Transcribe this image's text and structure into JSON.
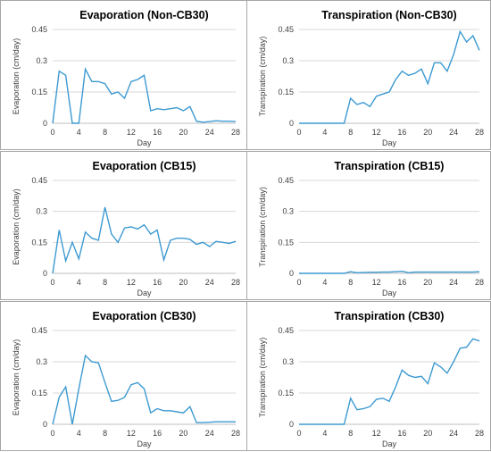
{
  "chart_data": [
    {
      "type": "line",
      "title": "Evaporation (Non-CB30)",
      "xlabel": "Day",
      "ylabel": "Evaporation (cm/day)",
      "xlim": [
        0,
        28
      ],
      "ylim": [
        0,
        0.45
      ],
      "xticks": [
        0,
        4,
        8,
        12,
        16,
        20,
        24,
        28
      ],
      "yticks": [
        "0",
        "0.15",
        "0.3",
        "0.45"
      ],
      "grid": true,
      "color": "#3d9ad1",
      "x": [
        0,
        1,
        2,
        3,
        4,
        5,
        6,
        7,
        8,
        9,
        10,
        11,
        12,
        13,
        14,
        15,
        16,
        17,
        18,
        19,
        20,
        21,
        22,
        23,
        24,
        25,
        26,
        27,
        28
      ],
      "values": [
        0.0,
        0.25,
        0.23,
        0.0,
        0.0,
        0.26,
        0.2,
        0.2,
        0.19,
        0.14,
        0.15,
        0.12,
        0.2,
        0.21,
        0.23,
        0.06,
        0.07,
        0.065,
        0.07,
        0.075,
        0.06,
        0.08,
        0.01,
        0.005,
        0.008,
        0.012,
        0.01,
        0.01,
        0.008
      ]
    },
    {
      "type": "line",
      "title": "Transpiration (Non-CB30)",
      "xlabel": "Day",
      "ylabel": "Transpiration (cm/day)",
      "xlim": [
        0,
        28
      ],
      "ylim": [
        0,
        0.45
      ],
      "xticks": [
        0,
        4,
        8,
        12,
        16,
        20,
        24,
        28
      ],
      "yticks": [
        "0",
        "0.15",
        "0.3",
        "0.45"
      ],
      "grid": true,
      "color": "#3d9ad1",
      "x": [
        0,
        1,
        2,
        3,
        4,
        5,
        6,
        7,
        8,
        9,
        10,
        11,
        12,
        13,
        14,
        15,
        16,
        17,
        18,
        19,
        20,
        21,
        22,
        23,
        24,
        25,
        26,
        27,
        28
      ],
      "values": [
        0,
        0,
        0,
        0,
        0,
        0,
        0,
        0,
        0.12,
        0.09,
        0.1,
        0.08,
        0.13,
        0.14,
        0.15,
        0.21,
        0.25,
        0.23,
        0.24,
        0.26,
        0.19,
        0.29,
        0.29,
        0.25,
        0.33,
        0.44,
        0.39,
        0.42,
        0.35
      ]
    },
    {
      "type": "line",
      "title": "Evaporation (CB15)",
      "xlabel": "Day",
      "ylabel": "Evaporation (cm/day)",
      "xlim": [
        0,
        28
      ],
      "ylim": [
        0,
        0.45
      ],
      "xticks": [
        0,
        4,
        8,
        12,
        16,
        20,
        24,
        28
      ],
      "yticks": [
        "0",
        "0.15",
        "0.3",
        "0.45"
      ],
      "grid": true,
      "color": "#3d9ad1",
      "x": [
        0,
        1,
        2,
        3,
        4,
        5,
        6,
        7,
        8,
        9,
        10,
        11,
        12,
        13,
        14,
        15,
        16,
        17,
        18,
        19,
        20,
        21,
        22,
        23,
        24,
        25,
        26,
        27,
        28
      ],
      "values": [
        0.0,
        0.21,
        0.06,
        0.15,
        0.07,
        0.2,
        0.17,
        0.16,
        0.32,
        0.19,
        0.15,
        0.22,
        0.225,
        0.215,
        0.235,
        0.19,
        0.21,
        0.065,
        0.16,
        0.17,
        0.17,
        0.165,
        0.14,
        0.15,
        0.13,
        0.155,
        0.15,
        0.145,
        0.155
      ]
    },
    {
      "type": "line",
      "title": "Transpiration (CB15)",
      "xlabel": "Day",
      "ylabel": "Transpiration (cm/day)",
      "xlim": [
        0,
        28
      ],
      "ylim": [
        0,
        0.45
      ],
      "xticks": [
        0,
        4,
        8,
        12,
        16,
        20,
        24,
        28
      ],
      "yticks": [
        "0",
        "0.15",
        "0.3",
        "0.45"
      ],
      "grid": true,
      "color": "#3d9ad1",
      "x": [
        0,
        1,
        2,
        3,
        4,
        5,
        6,
        7,
        8,
        9,
        10,
        11,
        12,
        13,
        14,
        15,
        16,
        17,
        18,
        19,
        20,
        21,
        22,
        23,
        24,
        25,
        26,
        27,
        28
      ],
      "values": [
        0,
        0,
        0,
        0,
        0,
        0,
        0,
        0,
        0.008,
        0.003,
        0.004,
        0.005,
        0.005,
        0.006,
        0.006,
        0.008,
        0.01,
        0.003,
        0.006,
        0.006,
        0.006,
        0.006,
        0.006,
        0.006,
        0.006,
        0.006,
        0.006,
        0.006,
        0.008
      ]
    },
    {
      "type": "line",
      "title": "Evaporation (CB30)",
      "xlabel": "Day",
      "ylabel": "Evaporation (cm/day)",
      "xlim": [
        0,
        28
      ],
      "ylim": [
        0,
        0.45
      ],
      "xticks": [
        0,
        4,
        8,
        12,
        16,
        20,
        24,
        28
      ],
      "yticks": [
        "0",
        "0.15",
        "0.3",
        "0.45"
      ],
      "grid": true,
      "color": "#3d9ad1",
      "x": [
        0,
        1,
        2,
        3,
        4,
        5,
        6,
        7,
        8,
        9,
        10,
        11,
        12,
        13,
        14,
        15,
        16,
        17,
        18,
        19,
        20,
        21,
        22,
        23,
        24,
        25,
        26,
        27,
        28
      ],
      "values": [
        0.0,
        0.13,
        0.18,
        0.0,
        0.17,
        0.33,
        0.3,
        0.295,
        0.2,
        0.11,
        0.115,
        0.13,
        0.19,
        0.2,
        0.17,
        0.055,
        0.075,
        0.065,
        0.065,
        0.06,
        0.055,
        0.085,
        0.008,
        0.008,
        0.01,
        0.012,
        0.012,
        0.012,
        0.012
      ]
    },
    {
      "type": "line",
      "title": "Transpiration (CB30)",
      "xlabel": "Day",
      "ylabel": "Transpiration (cm/day)",
      "xlim": [
        0,
        28
      ],
      "ylim": [
        0,
        0.45
      ],
      "xticks": [
        0,
        4,
        8,
        12,
        16,
        20,
        24,
        28
      ],
      "yticks": [
        "0",
        "0.15",
        "0.3",
        "0.45"
      ],
      "grid": true,
      "color": "#3d9ad1",
      "x": [
        0,
        1,
        2,
        3,
        4,
        5,
        6,
        7,
        8,
        9,
        10,
        11,
        12,
        13,
        14,
        15,
        16,
        17,
        18,
        19,
        20,
        21,
        22,
        23,
        24,
        25,
        26,
        27,
        28
      ],
      "values": [
        0,
        0,
        0,
        0,
        0,
        0,
        0,
        0,
        0.125,
        0.07,
        0.075,
        0.085,
        0.12,
        0.125,
        0.11,
        0.18,
        0.26,
        0.235,
        0.225,
        0.23,
        0.195,
        0.295,
        0.275,
        0.245,
        0.3,
        0.365,
        0.37,
        0.41,
        0.4
      ]
    }
  ]
}
